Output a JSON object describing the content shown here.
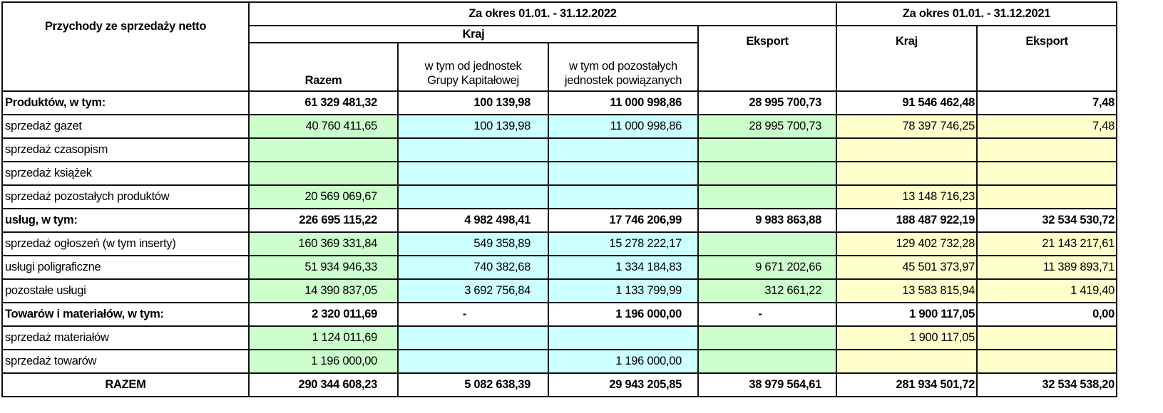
{
  "header": {
    "title": "Przychody ze sprzedaży netto",
    "period_2022": "Za okres  01.01. - 31.12.2022",
    "period_2021": "Za okres  01.01. - 31.12.2021",
    "kraj_2022": "Kraj",
    "razem": "Razem",
    "grupa": "w tym od jednostek Grupy Kapitałowej",
    "powiazane": "w tym od pozostałych jednostek powiązanych",
    "eksport_2022": "Eksport",
    "kraj_2021": "Kraj",
    "eksport_2021": "Eksport"
  },
  "colors": {
    "green": "#ccffcc",
    "cyan": "#ccffff",
    "yellow": "#ffffcc"
  },
  "rows": [
    {
      "label": "Produktów, w tym:",
      "type": "group",
      "values": [
        "61 329 481,32",
        "100 139,98",
        "11 000 998,86",
        "28 995 700,73",
        "91 546 462,48",
        "7,48"
      ]
    },
    {
      "label": "sprzedaż gazet",
      "type": "detail",
      "values": [
        "40 760 411,65",
        "100 139,98",
        "11 000 998,86",
        "28 995 700,73",
        "78 397 746,25",
        "7,48"
      ]
    },
    {
      "label": "sprzedaż czasopism",
      "type": "detail",
      "values": [
        "",
        "",
        "",
        "",
        "",
        ""
      ]
    },
    {
      "label": "sprzedaż książek",
      "type": "detail",
      "values": [
        "",
        "",
        "",
        "",
        "",
        ""
      ]
    },
    {
      "label": "sprzedaż pozostałych produktów",
      "type": "detail",
      "values": [
        "20 569 069,67",
        "",
        "",
        "",
        "13 148 716,23",
        ""
      ]
    },
    {
      "label": "usług, w tym:",
      "type": "group",
      "values": [
        "226 695 115,22",
        "4 982 498,41",
        "17 746 206,99",
        "9 983 863,88",
        "188 487 922,19",
        "32 534 530,72"
      ]
    },
    {
      "label": "sprzedaż ogłoszeń (w tym inserty)",
      "type": "detail",
      "values": [
        "160 369 331,84",
        "549 358,89",
        "15 278 222,17",
        "",
        "129 402 732,28",
        "21 143 217,61"
      ]
    },
    {
      "label": "usługi poligraficzne",
      "type": "detail",
      "values": [
        "51 934 946,33",
        "740 382,68",
        "1 334 184,83",
        "9 671 202,66",
        "45 501 373,97",
        "11 389 893,71"
      ]
    },
    {
      "label": "pozostałe usługi",
      "type": "detail",
      "values": [
        "14 390 837,05",
        "3 692 756,84",
        "1 133 799,99",
        "312 661,22",
        "13 583 815,94",
        "1 419,40"
      ]
    },
    {
      "label": "Towarów i materiałów, w tym:",
      "type": "group",
      "values": [
        "2 320 011,69",
        "-",
        "1 196 000,00",
        "-",
        "1 900 117,05",
        "0,00"
      ]
    },
    {
      "label": "sprzedaż materiałów",
      "type": "detail",
      "values": [
        "1 124 011,69",
        "",
        "",
        "",
        "1 900 117,05",
        ""
      ]
    },
    {
      "label": "sprzedaż towarów",
      "type": "detail",
      "values": [
        "1 196 000,00",
        "",
        "1 196 000,00",
        "",
        "",
        ""
      ]
    },
    {
      "label": "RAZEM",
      "type": "total",
      "values": [
        "290 344 608,23",
        "5 082 638,39",
        "29 943 205,85",
        "38 979 564,61",
        "281 934 501,72",
        "32 534 538,20"
      ]
    }
  ]
}
